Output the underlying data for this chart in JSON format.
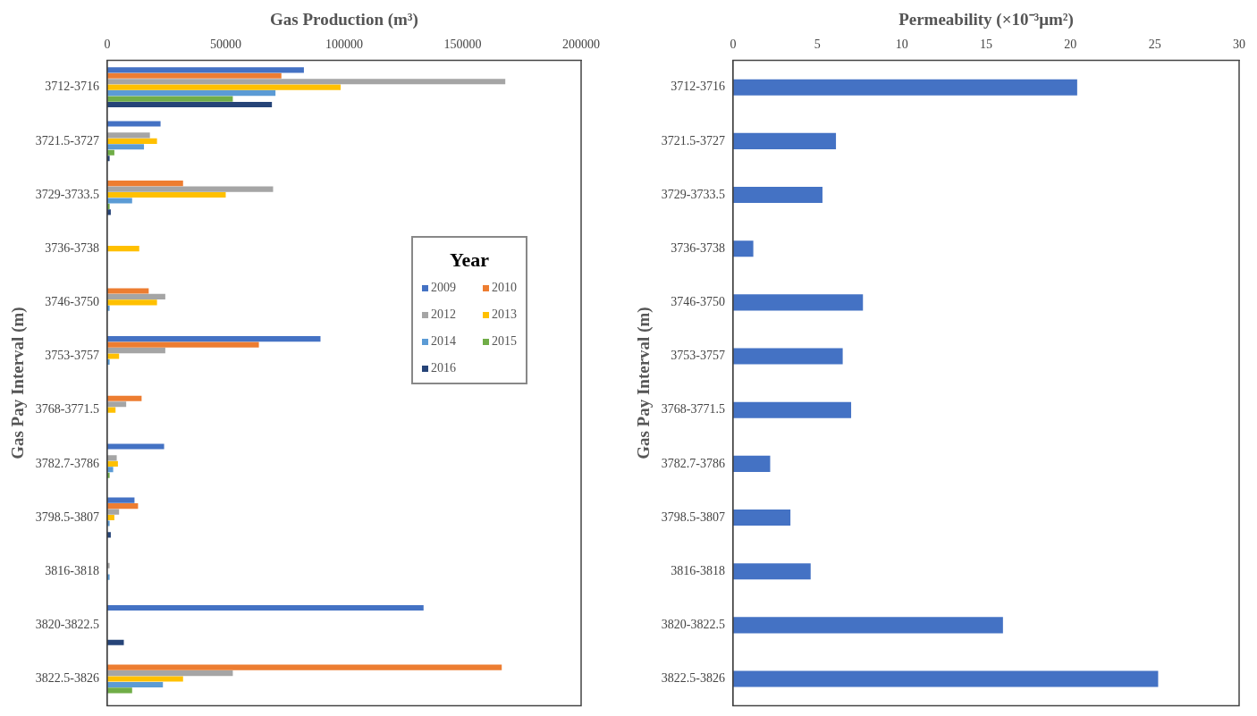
{
  "chart_data": [
    {
      "type": "bar",
      "orientation": "horizontal",
      "xlabel": "Gas Production (m³)",
      "ylabel": "Gas Pay Interval (m)",
      "legend": "right",
      "legend_title": "Year",
      "grid": false,
      "categories": [
        "3712-3716",
        "3721.5-3727",
        "3729-3733.5",
        "3736-3738",
        "3746-3750",
        "3753-3757",
        "3768-3771.5",
        "3782.7-3786",
        "3798.5-3807",
        "3816-3818",
        "3820-3822.5",
        "3822.5-3826"
      ],
      "xlim": [
        0,
        200000
      ],
      "xticks": [
        0,
        50000,
        100000,
        150000,
        200000
      ],
      "series": [
        {
          "name": "2009",
          "color": "#4472c4",
          "values": [
            83000,
            22500,
            0,
            0,
            0,
            90000,
            0,
            24000,
            11500,
            0,
            133500,
            0
          ]
        },
        {
          "name": "2010",
          "color": "#ed7d31",
          "values": [
            73500,
            0,
            32000,
            0,
            17500,
            64000,
            14500,
            0,
            13000,
            0,
            0,
            166500
          ]
        },
        {
          "name": "2012",
          "color": "#a5a5a5",
          "values": [
            168000,
            18000,
            70000,
            0,
            24500,
            24500,
            8000,
            4000,
            5000,
            1000,
            0,
            53000
          ]
        },
        {
          "name": "2013",
          "color": "#ffc000",
          "values": [
            98500,
            21000,
            50000,
            13500,
            21000,
            5000,
            3500,
            4500,
            3000,
            0,
            0,
            32000
          ]
        },
        {
          "name": "2014",
          "color": "#5b9bd5",
          "values": [
            71000,
            15500,
            10500,
            0,
            1000,
            1000,
            0,
            2500,
            1000,
            1000,
            0,
            23500
          ]
        },
        {
          "name": "2015",
          "color": "#70ad47",
          "values": [
            53000,
            3000,
            1000,
            0,
            0,
            0,
            0,
            1000,
            0,
            0,
            0,
            10500
          ]
        },
        {
          "name": "2016",
          "color": "#264478",
          "values": [
            69500,
            1000,
            1500,
            0,
            0,
            0,
            0,
            0,
            1500,
            0,
            7000,
            0
          ]
        }
      ]
    },
    {
      "type": "bar",
      "orientation": "horizontal",
      "xlabel": "Permeability (×10⁻³μm²)",
      "ylabel": "Gas Pay Interval (m)",
      "grid": false,
      "categories": [
        "3712-3716",
        "3721.5-3727",
        "3729-3733.5",
        "3736-3738",
        "3746-3750",
        "3753-3757",
        "3768-3771.5",
        "3782.7-3786",
        "3798.5-3807",
        "3816-3818",
        "3820-3822.5",
        "3822.5-3826"
      ],
      "xlim": [
        0,
        30
      ],
      "xticks": [
        0,
        5,
        10,
        15,
        20,
        25,
        30
      ],
      "series": [
        {
          "color": "#4472c4",
          "values": [
            20.4,
            6.1,
            5.3,
            1.2,
            7.7,
            6.5,
            7.0,
            2.2,
            3.4,
            4.6,
            16.0,
            25.2
          ]
        }
      ]
    }
  ]
}
